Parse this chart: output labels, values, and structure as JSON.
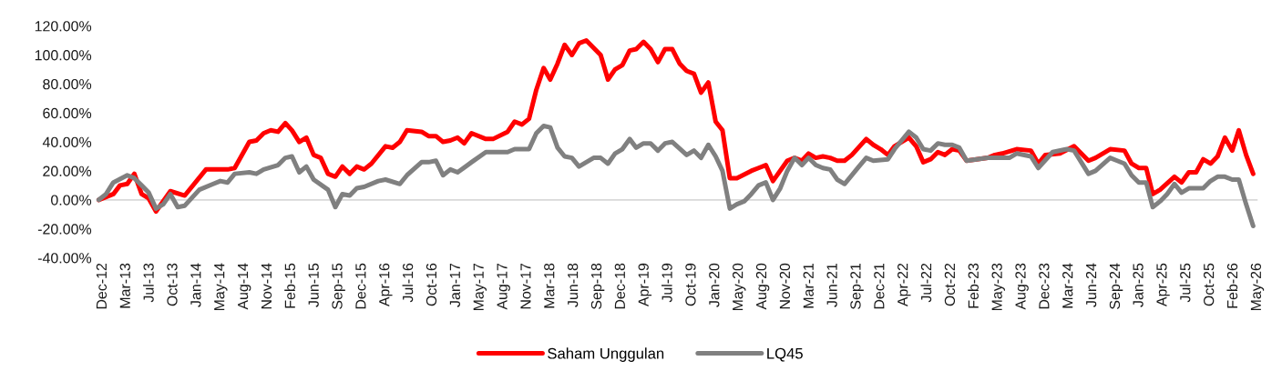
{
  "chart_data": {
    "type": "line",
    "xlim": [
      "2012-11-20",
      "2026-05-20"
    ],
    "xticks": [
      {
        "value": "2012-12-18",
        "label": "Dec-12"
      },
      {
        "value": "2013-03-28",
        "label": "Mar-13"
      },
      {
        "value": "2013-07-06",
        "label": "Jul-13"
      },
      {
        "value": "2013-10-14",
        "label": "Oct-13"
      },
      {
        "value": "2014-01-22",
        "label": "Jan-14"
      },
      {
        "value": "2014-05-02",
        "label": "May-14"
      },
      {
        "value": "2014-08-10",
        "label": "Aug-14"
      },
      {
        "value": "2014-11-18",
        "label": "Nov-14"
      },
      {
        "value": "2015-02-26",
        "label": "Feb-15"
      },
      {
        "value": "2015-06-06",
        "label": "Jun-15"
      },
      {
        "value": "2015-09-14",
        "label": "Sep-15"
      },
      {
        "value": "2015-12-23",
        "label": "Dec-15"
      },
      {
        "value": "2016-04-01",
        "label": "Apr-16"
      },
      {
        "value": "2016-07-10",
        "label": "Jul-16"
      },
      {
        "value": "2016-10-18",
        "label": "Oct-16"
      },
      {
        "value": "2017-01-26",
        "label": "Jan-17"
      },
      {
        "value": "2017-05-06",
        "label": "May-17"
      },
      {
        "value": "2017-08-14",
        "label": "Aug-17"
      },
      {
        "value": "2017-11-22",
        "label": "Nov-17"
      },
      {
        "value": "2018-03-02",
        "label": "Mar-18"
      },
      {
        "value": "2018-06-10",
        "label": "Jun-18"
      },
      {
        "value": "2018-09-18",
        "label": "Sep-18"
      },
      {
        "value": "2018-12-27",
        "label": "Dec-18"
      },
      {
        "value": "2019-04-06",
        "label": "Apr-19"
      },
      {
        "value": "2019-07-15",
        "label": "Jul-19"
      },
      {
        "value": "2019-10-23",
        "label": "Oct-19"
      },
      {
        "value": "2020-01-31",
        "label": "Jan-20"
      },
      {
        "value": "2020-05-10",
        "label": "May-20"
      },
      {
        "value": "2020-08-18",
        "label": "Aug-20"
      },
      {
        "value": "2020-11-26",
        "label": "Nov-20"
      },
      {
        "value": "2021-03-06",
        "label": "Mar-21"
      },
      {
        "value": "2021-06-14",
        "label": "Jun-21"
      },
      {
        "value": "2021-09-22",
        "label": "Sep-21"
      },
      {
        "value": "2021-12-31",
        "label": "Dec-21"
      },
      {
        "value": "2022-04-10",
        "label": "Apr-22"
      },
      {
        "value": "2022-07-19",
        "label": "Jul-22"
      },
      {
        "value": "2022-10-27",
        "label": "Oct-22"
      },
      {
        "value": "2023-02-04",
        "label": "Feb-23"
      },
      {
        "value": "2023-05-15",
        "label": "May-23"
      },
      {
        "value": "2023-08-23",
        "label": "Aug-23"
      },
      {
        "value": "2023-12-01",
        "label": "Dec-23"
      },
      {
        "value": "2024-03-10",
        "label": "Mar-24"
      },
      {
        "value": "2024-06-18",
        "label": "Jun-24"
      },
      {
        "value": "2024-09-26",
        "label": "Sep-24"
      },
      {
        "value": "2025-01-03",
        "label": "Jan-25"
      },
      {
        "value": "2025-04-13",
        "label": "Apr-25"
      },
      {
        "value": "2025-07-22",
        "label": "Jul-25"
      },
      {
        "value": "2025-10-30",
        "label": "Oct-25"
      },
      {
        "value": "2026-02-07",
        "label": "Feb-26"
      },
      {
        "value": "2026-05-18",
        "label": "May-26"
      }
    ],
    "ylim": [
      -40,
      120
    ],
    "yticks": [
      {
        "value": -40,
        "label": "-40.00%"
      },
      {
        "value": -20,
        "label": "-20.00%"
      },
      {
        "value": 0,
        "label": "0.00%"
      },
      {
        "value": 20,
        "label": "20.00%"
      },
      {
        "value": 40,
        "label": "40.00%"
      },
      {
        "value": 60,
        "label": "60.00%"
      },
      {
        "value": 80,
        "label": "80.00%"
      },
      {
        "value": 100,
        "label": "100.00%"
      },
      {
        "value": 120,
        "label": "120.00%"
      }
    ],
    "grid": false,
    "legend": "bottom",
    "marker": "none",
    "line_style": "solid",
    "ref_lines": [
      {
        "axis": "y",
        "value": 0,
        "color": "#d9d9d9"
      }
    ],
    "series": [
      {
        "name": "Saham Unggulan",
        "color": "#ff0000",
        "x": [
          "2012-12",
          "2013-02",
          "2013-03",
          "2013-04",
          "2013-05",
          "2013-06",
          "2013-07",
          "2013-08",
          "2013-10",
          "2013-12",
          "2014-03",
          "2014-06",
          "2014-07",
          "2014-09",
          "2014-10",
          "2014-11",
          "2014-12",
          "2015-01",
          "2015-02",
          "2015-03",
          "2015-04",
          "2015-05",
          "2015-06",
          "2015-07",
          "2015-08",
          "2015-09",
          "2015-10",
          "2015-11",
          "2015-12",
          "2016-01",
          "2016-02",
          "2016-04",
          "2016-05",
          "2016-06",
          "2016-07",
          "2016-09",
          "2016-10",
          "2016-11",
          "2016-12",
          "2017-01",
          "2017-02",
          "2017-03",
          "2017-04",
          "2017-06",
          "2017-07",
          "2017-09",
          "2017-10",
          "2017-11",
          "2017-12",
          "2018-01",
          "2018-02",
          "2018-03",
          "2018-04",
          "2018-05",
          "2018-06",
          "2018-07",
          "2018-08",
          "2018-10",
          "2018-11",
          "2018-12",
          "2019-01",
          "2019-02",
          "2019-03",
          "2019-04",
          "2019-05",
          "2019-06",
          "2019-07",
          "2019-08",
          "2019-09",
          "2019-10",
          "2019-11",
          "2019-12",
          "2020-01",
          "2020-02",
          "2020-03",
          "2020-04",
          "2020-05",
          "2020-07",
          "2020-08",
          "2020-09",
          "2020-10",
          "2020-12",
          "2021-01",
          "2021-02",
          "2021-03",
          "2021-04",
          "2021-05",
          "2021-06",
          "2021-07",
          "2021-08",
          "2021-09",
          "2021-11",
          "2021-12",
          "2022-01",
          "2022-02",
          "2022-03",
          "2022-05",
          "2022-06",
          "2022-07",
          "2022-08",
          "2022-09",
          "2022-10",
          "2022-11",
          "2022-12",
          "2023-01",
          "2023-04",
          "2023-05",
          "2023-06",
          "2023-08",
          "2023-10",
          "2023-11",
          "2023-12",
          "2024-02",
          "2024-04",
          "2024-06",
          "2024-07",
          "2024-09",
          "2024-11",
          "2024-12",
          "2025-01",
          "2025-02",
          "2025-03",
          "2025-04",
          "2025-06",
          "2025-07",
          "2025-08",
          "2025-09",
          "2025-10",
          "2025-11",
          "2025-12",
          "2026-01",
          "2026-02",
          "2026-03",
          "2026-04",
          "2026-05"
        ],
        "values": [
          0,
          4,
          10,
          11,
          18,
          4,
          1,
          -8,
          6,
          3,
          21,
          21,
          22,
          40,
          41,
          46,
          48,
          47,
          53,
          48,
          40,
          43,
          31,
          29,
          18,
          16,
          23,
          18,
          23,
          21,
          25,
          37,
          36,
          40,
          48,
          47,
          44,
          44,
          40,
          41,
          43,
          39,
          46,
          42,
          42,
          47,
          54,
          52,
          56,
          76,
          91,
          83,
          94,
          107,
          100,
          108,
          110,
          100,
          83,
          90,
          93,
          103,
          104,
          109,
          104,
          95,
          104,
          104,
          94,
          89,
          87,
          74,
          81,
          54,
          48,
          15,
          15,
          20,
          22,
          24,
          13,
          27,
          29,
          27,
          32,
          29,
          30,
          29,
          27,
          27,
          31,
          42,
          38,
          35,
          31,
          37,
          43,
          37,
          26,
          28,
          33,
          31,
          35,
          34,
          27,
          29,
          31,
          32,
          35,
          34,
          25,
          31,
          32,
          37,
          27,
          29,
          35,
          34,
          25,
          22,
          22,
          4,
          7,
          16,
          12,
          19,
          19,
          28,
          25,
          30,
          43,
          34,
          48,
          31,
          18
        ]
      },
      {
        "name": "LQ45",
        "color": "#808080",
        "x": [
          "2012-12",
          "2013-01",
          "2013-02",
          "2013-04",
          "2013-05",
          "2013-06",
          "2013-07",
          "2013-08",
          "2013-09",
          "2013-10",
          "2013-11",
          "2013-12",
          "2014-02",
          "2014-04",
          "2014-05",
          "2014-06",
          "2014-07",
          "2014-09",
          "2014-10",
          "2014-11",
          "2015-01",
          "2015-02",
          "2015-03",
          "2015-04",
          "2015-05",
          "2015-06",
          "2015-08",
          "2015-09",
          "2015-10",
          "2015-11",
          "2015-12",
          "2016-01",
          "2016-03",
          "2016-04",
          "2016-06",
          "2016-07",
          "2016-09",
          "2016-10",
          "2016-11",
          "2016-12",
          "2017-01",
          "2017-02",
          "2017-04",
          "2017-06",
          "2017-08",
          "2017-09",
          "2017-10",
          "2017-12",
          "2018-01",
          "2018-02",
          "2018-03",
          "2018-04",
          "2018-05",
          "2018-06",
          "2018-07",
          "2018-09",
          "2018-10",
          "2018-11",
          "2018-12",
          "2019-01",
          "2019-02",
          "2019-03",
          "2019-04",
          "2019-05",
          "2019-06",
          "2019-07",
          "2019-08",
          "2019-10",
          "2019-11",
          "2019-12",
          "2020-01",
          "2020-02",
          "2020-03",
          "2020-04",
          "2020-05",
          "2020-06",
          "2020-07",
          "2020-08",
          "2020-09",
          "2020-10",
          "2020-11",
          "2020-12",
          "2021-01",
          "2021-02",
          "2021-03",
          "2021-04",
          "2021-05",
          "2021-06",
          "2021-07",
          "2021-08",
          "2021-09",
          "2021-10",
          "2021-11",
          "2021-12",
          "2022-02",
          "2022-03",
          "2022-05",
          "2022-06",
          "2022-07",
          "2022-08",
          "2022-09",
          "2022-10",
          "2022-11",
          "2022-12",
          "2023-01",
          "2023-04",
          "2023-05",
          "2023-06",
          "2023-07",
          "2023-08",
          "2023-10",
          "2023-11",
          "2024-01",
          "2024-03",
          "2024-04",
          "2024-06",
          "2024-07",
          "2024-09",
          "2024-10",
          "2024-11",
          "2024-12",
          "2025-01",
          "2025-02",
          "2025-03",
          "2025-04",
          "2025-05",
          "2025-06",
          "2025-07",
          "2025-08",
          "2025-10",
          "2025-11",
          "2025-12",
          "2026-01",
          "2026-02",
          "2026-03",
          "2026-04",
          "2026-05"
        ],
        "values": [
          0,
          4,
          12,
          17,
          15,
          10,
          5,
          -6,
          -3,
          4,
          -5,
          -4,
          7,
          11,
          13,
          12,
          18,
          19,
          18,
          21,
          24,
          29,
          30,
          19,
          23,
          14,
          7,
          -5,
          4,
          3,
          8,
          9,
          13,
          14,
          11,
          17,
          26,
          26,
          27,
          17,
          21,
          19,
          26,
          33,
          33,
          33,
          35,
          35,
          46,
          51,
          50,
          36,
          30,
          29,
          23,
          29,
          29,
          25,
          32,
          35,
          42,
          36,
          39,
          39,
          34,
          39,
          40,
          31,
          34,
          29,
          38,
          30,
          20,
          -6,
          -3,
          -1,
          4,
          10,
          12,
          0,
          8,
          20,
          29,
          24,
          29,
          24,
          22,
          21,
          14,
          11,
          17,
          23,
          29,
          27,
          28,
          35,
          47,
          43,
          35,
          34,
          39,
          38,
          38,
          36,
          27,
          29,
          29,
          29,
          29,
          32,
          30,
          22,
          33,
          35,
          34,
          18,
          20,
          29,
          27,
          25,
          17,
          12,
          12,
          -5,
          -1,
          4,
          11,
          5,
          8,
          8,
          13,
          16,
          16,
          14,
          14,
          -3,
          -18
        ]
      }
    ]
  }
}
